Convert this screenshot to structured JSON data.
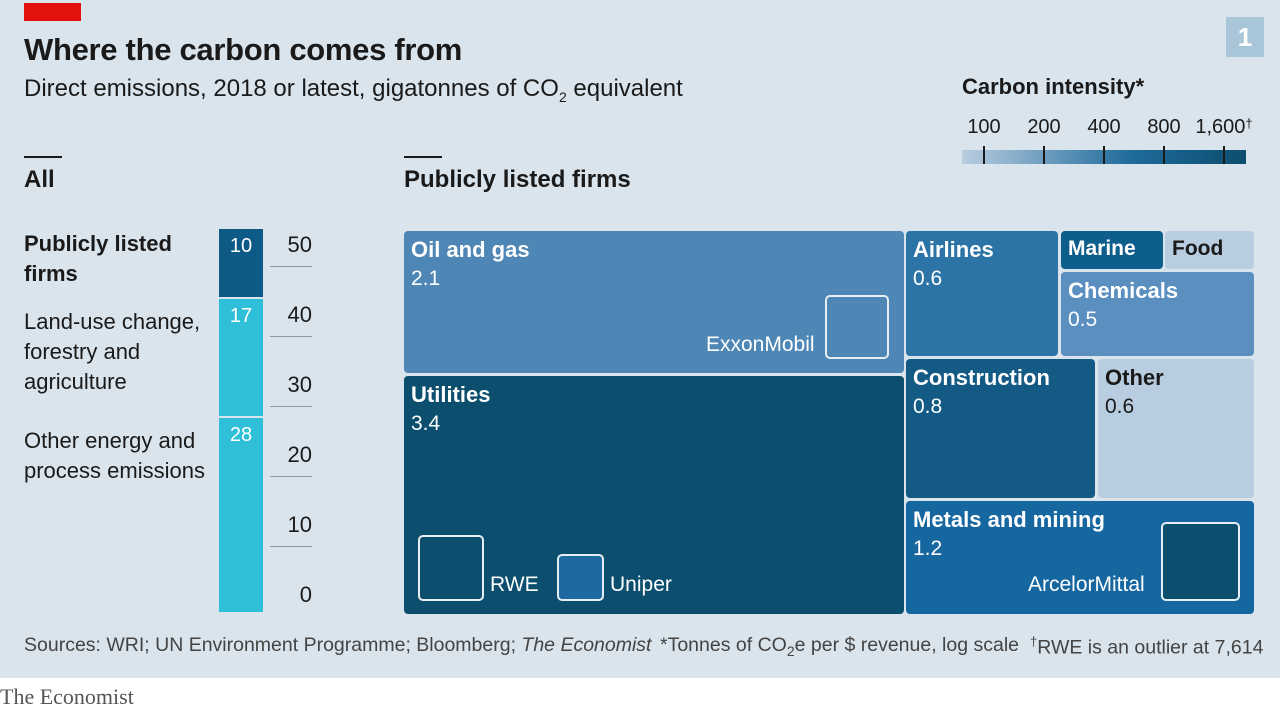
{
  "header": {
    "title": "Where the carbon comes from",
    "subtitle_pre": "Direct emissions, 2018 or latest, gigatonnes of CO",
    "subtitle_sub": "2",
    "subtitle_post": " equivalent",
    "chart_number": "1"
  },
  "legend": {
    "title": "Carbon intensity*",
    "ticks": [
      "100",
      "200",
      "400",
      "800",
      "1,600"
    ],
    "last_tick_mark": "†",
    "colors": {
      "low": "#b9cde0",
      "high": "#0c4e6e"
    }
  },
  "all_panel": {
    "title": "All",
    "labels": [
      "Publicly listed firms",
      "Land-use change, forestry and agriculture",
      "Other energy and process emissions"
    ],
    "segments": [
      {
        "label": "Publicly listed firms",
        "value": 10,
        "color": "#0e5a87"
      },
      {
        "label": "Land-use change, forestry and agriculture",
        "value": 17,
        "color": "#2fbfd8"
      },
      {
        "label": "Other energy and process emissions",
        "value": 28,
        "color": "#2fbfd8"
      }
    ],
    "axis_ticks": [
      "50",
      "40",
      "30",
      "20",
      "10",
      "0"
    ]
  },
  "treemap_panel": {
    "title": "Publicly listed firms",
    "tiles": [
      {
        "name": "Oil and gas",
        "value": "2.1",
        "color": "#4e87b6"
      },
      {
        "name": "Utilities",
        "value": "3.4",
        "color": "#0c4e6e"
      },
      {
        "name": "Airlines",
        "value": "0.6",
        "color": "#2c73a6"
      },
      {
        "name": "Marine",
        "value": "",
        "color": "#0e5e8c"
      },
      {
        "name": "Food",
        "value": "",
        "color": "#b9cde0"
      },
      {
        "name": "Chemicals",
        "value": "0.5",
        "color": "#5a8fbf"
      },
      {
        "name": "Construction",
        "value": "0.8",
        "color": "#135a85"
      },
      {
        "name": "Other",
        "value": "0.6",
        "color": "#b9cde0"
      },
      {
        "name": "Metals and mining",
        "value": "1.2",
        "color": "#1667a0"
      }
    ],
    "firms": [
      {
        "name": "ExxonMobil",
        "color": "#4e87b6"
      },
      {
        "name": "RWE",
        "color": "#0c4e6e"
      },
      {
        "name": "Uniper",
        "color": "#1e6aa0"
      },
      {
        "name": "ArcelorMittal",
        "color": "#0c4e6e"
      }
    ]
  },
  "chart_data": [
    {
      "type": "bar",
      "title": "All",
      "categories": [
        "Publicly listed firms",
        "Land-use change, forestry and agriculture",
        "Other energy and process emissions"
      ],
      "values": [
        10,
        17,
        28
      ],
      "stacked": true,
      "ylim": [
        0,
        50
      ]
    },
    {
      "type": "treemap",
      "title": "Publicly listed firms",
      "categories": [
        "Oil and gas",
        "Utilities",
        "Airlines",
        "Marine",
        "Food",
        "Chemicals",
        "Construction",
        "Other",
        "Metals and mining"
      ],
      "values": [
        2.1,
        3.4,
        0.6,
        null,
        null,
        0.5,
        0.8,
        0.6,
        1.2
      ]
    }
  ],
  "footer": {
    "sources_pre": "Sources: WRI; UN Environment Programme; Bloomberg; ",
    "sources_italic": "The Economist",
    "footnote1_pre": "*Tonnes of CO",
    "footnote1_sub": "2",
    "footnote1_post": "e per $ revenue, log scale",
    "footnote2_mark": "†",
    "footnote2_text": "RWE is an outlier at 7,614",
    "brand": "The Economist"
  }
}
